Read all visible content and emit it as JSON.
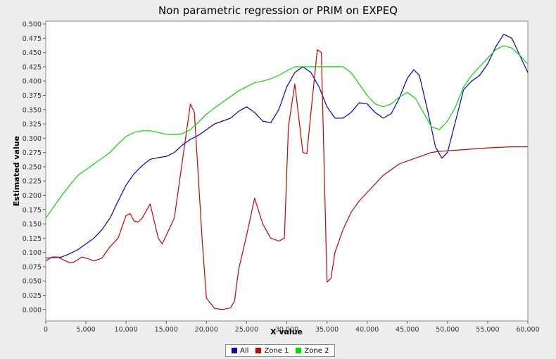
{
  "chart_data": {
    "type": "line",
    "title": "Non parametric regression or PRIM on EXPEQ",
    "xlabel": "X value",
    "ylabel": "Estimated value",
    "xlim": [
      0,
      60000
    ],
    "ylim": [
      -0.02,
      0.505
    ],
    "x_ticks": [
      0,
      5000,
      10000,
      15000,
      20000,
      25000,
      30000,
      35000,
      40000,
      45000,
      50000,
      55000,
      60000
    ],
    "x_tick_labels": [
      "0",
      "5,000",
      "10,000",
      "15,000",
      "20,000",
      "25,000",
      "30,000",
      "35,000",
      "40,000",
      "45,000",
      "50,000",
      "55,000",
      "60,000"
    ],
    "y_ticks": [
      0,
      0.025,
      0.05,
      0.075,
      0.1,
      0.125,
      0.15,
      0.175,
      0.2,
      0.225,
      0.25,
      0.275,
      0.3,
      0.325,
      0.35,
      0.375,
      0.4,
      0.425,
      0.45,
      0.475,
      0.5
    ],
    "y_tick_labels": [
      "0.000",
      "0.025",
      "0.050",
      "0.075",
      "0.100",
      "0.125",
      "0.150",
      "0.175",
      "0.200",
      "0.225",
      "0.250",
      "0.275",
      "0.300",
      "0.325",
      "0.350",
      "0.375",
      "0.400",
      "0.425",
      "0.450",
      "0.475",
      "0.500"
    ],
    "grid": false,
    "legend_position": "bottom",
    "series": [
      {
        "name": "All",
        "color": "#0000cc",
        "x": [
          0,
          2000,
          3000,
          4000,
          5000,
          6000,
          7000,
          8000,
          9000,
          10000,
          11000,
          12000,
          13000,
          14000,
          15000,
          16000,
          17000,
          18000,
          19000,
          20000,
          21000,
          22000,
          23000,
          24000,
          25000,
          26000,
          27000,
          28000,
          29000,
          30000,
          31000,
          32000,
          33000,
          34000,
          35000,
          36000,
          37000,
          38000,
          39000,
          40000,
          41000,
          42000,
          43000,
          44000,
          45000,
          45800,
          46500,
          47500,
          48500,
          49300,
          50000,
          51000,
          52000,
          53000,
          54000,
          55000,
          56000,
          57000,
          58000,
          59000,
          60000
        ],
        "y": [
          0.09,
          0.092,
          0.098,
          0.105,
          0.115,
          0.125,
          0.14,
          0.16,
          0.19,
          0.218,
          0.238,
          0.252,
          0.263,
          0.266,
          0.268,
          0.275,
          0.288,
          0.298,
          0.305,
          0.315,
          0.325,
          0.33,
          0.335,
          0.347,
          0.355,
          0.345,
          0.33,
          0.327,
          0.35,
          0.39,
          0.415,
          0.425,
          0.415,
          0.39,
          0.355,
          0.335,
          0.335,
          0.345,
          0.362,
          0.36,
          0.345,
          0.335,
          0.343,
          0.37,
          0.405,
          0.42,
          0.41,
          0.35,
          0.285,
          0.265,
          0.275,
          0.33,
          0.385,
          0.4,
          0.41,
          0.43,
          0.46,
          0.482,
          0.475,
          0.445,
          0.415
        ]
      },
      {
        "name": "Zone 1",
        "color": "#cc0000",
        "x": [
          0,
          800,
          1500,
          2500,
          3000,
          3500,
          4500,
          5500,
          6000,
          7000,
          8000,
          9000,
          10000,
          10500,
          11000,
          11500,
          12000,
          13000,
          14000,
          14500,
          15000,
          16000,
          17000,
          18000,
          18500,
          19500,
          20000,
          21000,
          22000,
          23000,
          23500,
          24000,
          25000,
          26000,
          27000,
          28000,
          29000,
          29700,
          30200,
          31000,
          32000,
          32500,
          33000,
          33800,
          34300,
          35000,
          35500,
          36000,
          37000,
          38000,
          39000,
          40000,
          41000,
          42000,
          43000,
          44000,
          45000,
          46000,
          47000,
          48000,
          49000,
          50000,
          52000,
          55000,
          58000,
          60000
        ],
        "y": [
          0.085,
          0.092,
          0.092,
          0.085,
          0.082,
          0.083,
          0.092,
          0.088,
          0.085,
          0.09,
          0.11,
          0.125,
          0.165,
          0.168,
          0.155,
          0.153,
          0.16,
          0.185,
          0.125,
          0.115,
          0.13,
          0.16,
          0.26,
          0.36,
          0.345,
          0.115,
          0.02,
          0.002,
          0.0,
          0.003,
          0.015,
          0.07,
          0.13,
          0.195,
          0.15,
          0.125,
          0.12,
          0.125,
          0.32,
          0.395,
          0.275,
          0.273,
          0.345,
          0.455,
          0.45,
          0.048,
          0.055,
          0.1,
          0.14,
          0.17,
          0.19,
          0.205,
          0.22,
          0.235,
          0.245,
          0.255,
          0.26,
          0.265,
          0.27,
          0.275,
          0.277,
          0.278,
          0.28,
          0.283,
          0.285,
          0.285
        ]
      },
      {
        "name": "Zone 2",
        "color": "#00dd00",
        "x": [
          0,
          1000,
          2000,
          3000,
          4000,
          5000,
          6000,
          7000,
          8000,
          9000,
          10000,
          11000,
          12000,
          13000,
          14000,
          15000,
          16000,
          17000,
          18000,
          19000,
          20000,
          21000,
          22000,
          23000,
          24000,
          25000,
          26000,
          27000,
          28000,
          29000,
          30000,
          31000,
          32000,
          33000,
          34000,
          35000,
          36000,
          37000,
          38000,
          39000,
          40000,
          41000,
          42000,
          43000,
          44000,
          45000,
          46000,
          47000,
          48000,
          49000,
          50000,
          51000,
          52000,
          53000,
          54000,
          55000,
          56000,
          57000,
          58000,
          59000,
          60000
        ],
        "y": [
          0.16,
          0.18,
          0.2,
          0.218,
          0.235,
          0.245,
          0.255,
          0.265,
          0.275,
          0.29,
          0.303,
          0.31,
          0.313,
          0.313,
          0.31,
          0.307,
          0.306,
          0.308,
          0.315,
          0.328,
          0.342,
          0.353,
          0.363,
          0.373,
          0.383,
          0.39,
          0.397,
          0.4,
          0.404,
          0.41,
          0.418,
          0.425,
          0.425,
          0.425,
          0.425,
          0.425,
          0.425,
          0.425,
          0.415,
          0.395,
          0.375,
          0.36,
          0.355,
          0.36,
          0.372,
          0.38,
          0.37,
          0.345,
          0.32,
          0.315,
          0.33,
          0.355,
          0.39,
          0.41,
          0.425,
          0.44,
          0.455,
          0.462,
          0.458,
          0.445,
          0.43
        ]
      }
    ]
  }
}
